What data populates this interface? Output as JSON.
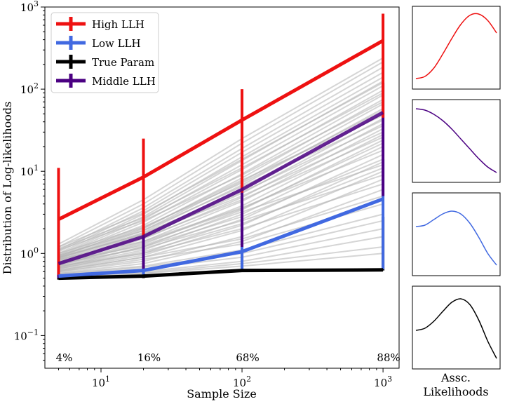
{
  "chart_data": [
    {
      "type": "line",
      "xscale": "log",
      "yscale": "log",
      "xlabel": "Sample Size",
      "ylabel": "Distribution of Log-likelihoods",
      "xlim": [
        4,
        1300
      ],
      "ylim": [
        0.04,
        1000
      ],
      "xticks": [
        {
          "value": 10,
          "base": "10",
          "exp": "1"
        },
        {
          "value": 100,
          "base": "10",
          "exp": "2"
        },
        {
          "value": 1000,
          "base": "10",
          "exp": "3"
        }
      ],
      "yticks": [
        {
          "value": 0.1,
          "base": "10",
          "exp": "−1"
        },
        {
          "value": 1,
          "base": "10",
          "exp": "0"
        },
        {
          "value": 10,
          "base": "10",
          "exp": "1"
        },
        {
          "value": 100,
          "base": "10",
          "exp": "2"
        },
        {
          "value": 1000,
          "base": "10",
          "exp": "3"
        }
      ],
      "x": [
        5,
        20,
        100,
        1000
      ],
      "percent_labels": [
        "4%",
        "16%",
        "68%",
        "88%"
      ],
      "legend_position": "upper-left",
      "series": [
        {
          "name": "High LLH",
          "color": "#ee1111",
          "values": [
            2.6,
            8.5,
            42,
            390
          ],
          "err_low": [
            0.55,
            1.6,
            5.5,
            45
          ],
          "err_high": [
            11,
            25,
            100,
            830
          ]
        },
        {
          "name": "Low LLH",
          "color": "#4169e1",
          "values": [
            0.53,
            0.62,
            1.05,
            4.6
          ],
          "err_low": [
            0.5,
            0.53,
            0.62,
            0.64
          ],
          "err_high": [
            0.65,
            0.95,
            4.2,
            14
          ]
        },
        {
          "name": "True Param",
          "color": "#000000",
          "values": [
            0.5,
            0.53,
            0.62,
            0.63
          ],
          "err_low": [
            0.48,
            0.5,
            0.6,
            0.62
          ],
          "err_high": [
            0.6,
            0.7,
            1.0,
            2.8
          ]
        },
        {
          "name": "Middle LLH",
          "color": "#4b0082",
          "values": [
            0.75,
            1.6,
            6,
            52
          ],
          "err_low": [
            0.5,
            0.6,
            1.2,
            5
          ],
          "err_high": [
            3.5,
            6.2,
            17,
            120
          ]
        }
      ],
      "background_lines": [
        [
          0.58,
          0.75,
          1.4,
          6
        ],
        [
          0.6,
          0.8,
          1.6,
          8
        ],
        [
          0.62,
          0.9,
          1.9,
          10
        ],
        [
          0.64,
          0.95,
          2.2,
          13
        ],
        [
          0.66,
          1.0,
          2.6,
          16
        ],
        [
          0.68,
          1.1,
          3.0,
          20
        ],
        [
          0.7,
          1.2,
          3.4,
          24
        ],
        [
          0.72,
          1.3,
          3.8,
          28
        ],
        [
          0.74,
          1.4,
          4.3,
          33
        ],
        [
          0.76,
          1.5,
          4.8,
          38
        ],
        [
          0.78,
          1.6,
          5.4,
          44
        ],
        [
          0.8,
          1.7,
          6.0,
          50
        ],
        [
          0.82,
          1.8,
          6.8,
          58
        ],
        [
          0.84,
          1.9,
          7.5,
          66
        ],
        [
          0.86,
          2.0,
          8.3,
          75
        ],
        [
          0.88,
          2.2,
          9.3,
          85
        ],
        [
          0.9,
          2.4,
          10.5,
          97
        ],
        [
          0.93,
          2.6,
          12,
          110
        ],
        [
          0.96,
          2.8,
          13.5,
          125
        ],
        [
          1.0,
          3.0,
          15,
          140
        ],
        [
          1.05,
          3.3,
          17,
          160
        ],
        [
          1.1,
          3.6,
          19,
          185
        ],
        [
          1.2,
          4.0,
          22,
          215
        ],
        [
          1.3,
          4.5,
          25,
          240
        ],
        [
          0.6,
          0.85,
          1.3,
          4.0
        ],
        [
          0.62,
          0.9,
          1.5,
          5.0
        ],
        [
          0.55,
          0.65,
          0.9,
          2.0
        ],
        [
          0.56,
          0.68,
          1.0,
          2.5
        ],
        [
          0.57,
          0.7,
          1.1,
          3.0
        ],
        [
          0.54,
          0.6,
          0.8,
          1.6
        ],
        [
          0.53,
          0.58,
          0.75,
          1.2
        ],
        [
          0.52,
          0.57,
          0.7,
          1.0
        ],
        [
          0.7,
          1.0,
          2.0,
          7
        ],
        [
          0.75,
          1.15,
          2.5,
          9
        ],
        [
          0.78,
          1.25,
          3.2,
          12
        ],
        [
          0.85,
          1.4,
          3.6,
          18
        ],
        [
          0.9,
          1.7,
          5.0,
          30
        ],
        [
          0.95,
          1.9,
          6.5,
          42
        ],
        [
          1.0,
          2.1,
          7.2,
          55
        ],
        [
          1.1,
          2.5,
          9.0,
          70
        ],
        [
          1.15,
          2.7,
          11,
          90
        ],
        [
          1.2,
          3.1,
          14,
          120
        ],
        [
          0.65,
          1.05,
          2.3,
          11
        ],
        [
          0.67,
          1.2,
          2.8,
          14
        ],
        [
          0.72,
          1.35,
          3.5,
          22
        ],
        [
          0.8,
          1.55,
          4.5,
          26
        ],
        [
          0.88,
          1.75,
          5.6,
          36
        ],
        [
          0.92,
          2.05,
          7.8,
          48
        ]
      ]
    },
    {
      "type": "line",
      "xlabel": "",
      "ylabel": "",
      "series": [
        {
          "color": "#ee1111",
          "values": [
            0.05,
            0.08,
            0.2,
            0.4,
            0.62,
            0.82,
            0.95,
            0.97,
            0.88,
            0.7
          ]
        }
      ]
    },
    {
      "type": "line",
      "xlabel": "",
      "ylabel": "",
      "series": [
        {
          "color": "#4b0082",
          "values": [
            0.95,
            0.93,
            0.87,
            0.78,
            0.66,
            0.52,
            0.38,
            0.24,
            0.12,
            0.04
          ]
        }
      ]
    },
    {
      "type": "line",
      "xlabel": "",
      "ylabel": "",
      "series": [
        {
          "color": "#4169e1",
          "values": [
            0.6,
            0.62,
            0.7,
            0.78,
            0.82,
            0.78,
            0.65,
            0.45,
            0.22,
            0.05
          ]
        }
      ]
    },
    {
      "type": "line",
      "xlabel": "",
      "ylabel": "",
      "series": [
        {
          "color": "#000000",
          "values": [
            0.45,
            0.48,
            0.58,
            0.72,
            0.85,
            0.9,
            0.82,
            0.6,
            0.3,
            0.05
          ]
        }
      ]
    }
  ],
  "side_label": {
    "line1": "Assc.",
    "line2": "Likelihoods"
  }
}
